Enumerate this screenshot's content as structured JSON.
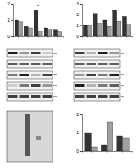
{
  "chart_data": [
    {
      "type": "bar",
      "categories": [
        null,
        null,
        null,
        null,
        null
      ],
      "series": [
        {
          "color": "#333333",
          "values": [
            1.0,
            0.6,
            1.6,
            0.5,
            0.4
          ]
        },
        {
          "color": "#a0a0a0",
          "values": [
            0.9,
            0.5,
            0.3,
            0.4,
            0.3
          ]
        }
      ],
      "ylim": [
        0,
        2
      ],
      "yticks": [
        0,
        1,
        2
      ],
      "annotations": [
        {
          "text": "*",
          "x": 2,
          "y": 1.75
        }
      ]
    },
    {
      "type": "bar",
      "categories": [
        null,
        null,
        null,
        null,
        null
      ],
      "series": [
        {
          "color": "#333333",
          "values": [
            1.0,
            2.1,
            1.5,
            2.4,
            1.8
          ]
        },
        {
          "color": "#a0a0a0",
          "values": [
            1.0,
            1.2,
            0.9,
            1.4,
            1.1
          ]
        }
      ],
      "ylim": [
        0,
        3
      ],
      "yticks": [
        0,
        1,
        2,
        3
      ]
    },
    {
      "type": "bar",
      "categories": [
        null,
        null,
        null
      ],
      "series": [
        {
          "color": "#333333",
          "values": [
            1.0,
            0.3,
            0.8
          ]
        },
        {
          "color": "#a0a0a0",
          "values": [
            0.2,
            1.6,
            0.7
          ]
        }
      ],
      "ylim": [
        0,
        2
      ],
      "yticks": [
        0,
        1,
        2
      ]
    }
  ]
}
